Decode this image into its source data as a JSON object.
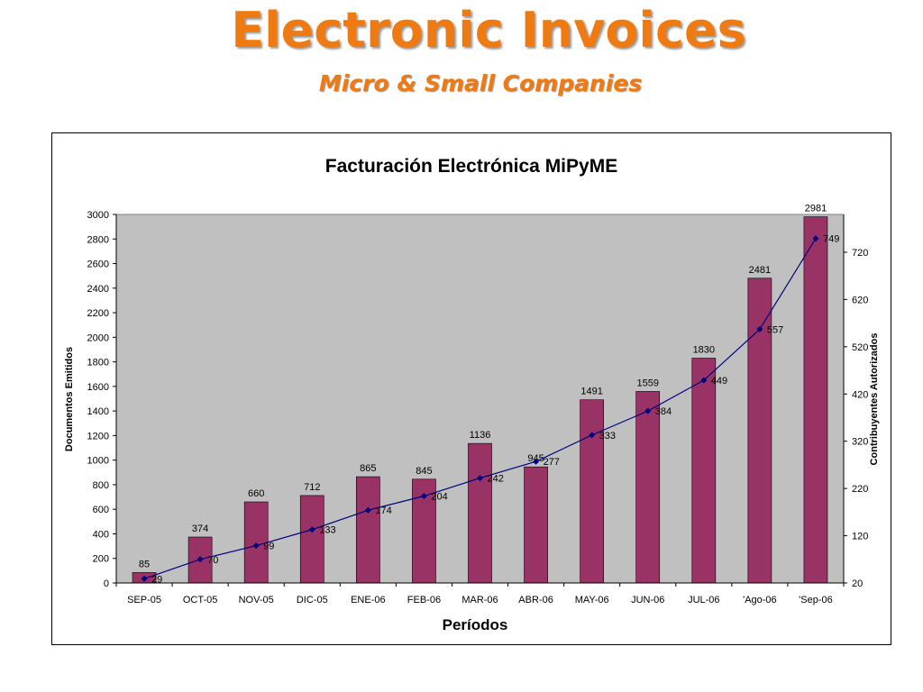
{
  "slide": {
    "title": "Electronic Invoices",
    "subtitle": "Micro & Small Companies"
  },
  "colors": {
    "title": "#f07a12",
    "bar": "#993366",
    "line": "#000080",
    "plot_area": "#c0c0c0"
  },
  "chart_data": {
    "type": "bar",
    "title": "Facturación Electrónica MiPyME",
    "xlabel": "Períodos",
    "ylabel": "Documentos Emitidos",
    "y2label": "Contribuyentes Autorizados",
    "categories": [
      "SEP-05",
      "OCT-05",
      "NOV-05",
      "DIC-05",
      "ENE-06",
      "FEB-06",
      "MAR-06",
      "ABR-06",
      "MAY-06",
      "JUN-06",
      "JUL-06",
      "'Ago-06",
      "'Sep-06"
    ],
    "ylim": [
      0,
      3000
    ],
    "yticks": [
      0,
      200,
      400,
      600,
      800,
      1000,
      1200,
      1400,
      1600,
      1800,
      2000,
      2200,
      2400,
      2600,
      2800,
      3000
    ],
    "y2lim": [
      20,
      800
    ],
    "y2ticks": [
      20,
      120,
      220,
      320,
      420,
      520,
      620,
      720
    ],
    "grid": false,
    "legend": "none",
    "series": [
      {
        "type": "bar",
        "axis": "left",
        "values": [
          85,
          374,
          660,
          712,
          865,
          845,
          1136,
          945,
          1491,
          1559,
          1830,
          2481,
          2981
        ]
      },
      {
        "type": "line",
        "axis": "right",
        "values": [
          29,
          70,
          99,
          133,
          174,
          204,
          242,
          277,
          333,
          384,
          449,
          557,
          749
        ]
      }
    ]
  }
}
